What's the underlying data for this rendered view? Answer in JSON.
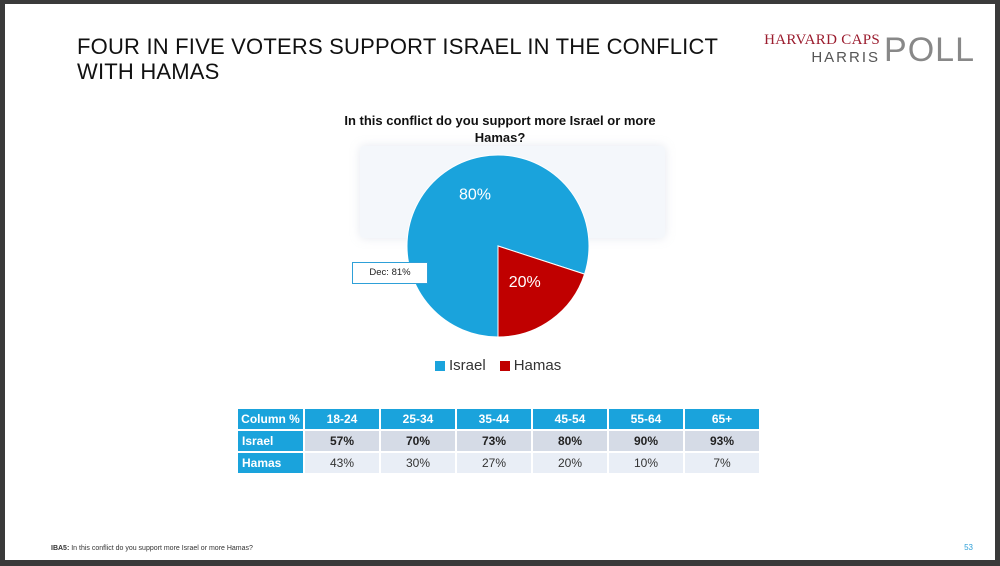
{
  "slide": {
    "title": "FOUR IN FIVE VOTERS SUPPORT ISRAEL IN THE CONFLICT WITH HAMAS",
    "logo": {
      "line1": "HARVARD CAPS",
      "line2": "HARRIS",
      "mark": "POLL"
    },
    "footnote_code": "IBA5:",
    "footnote_text": "In this conflict do you support more Israel or more Hamas?",
    "page_number": "53"
  },
  "chart_data": {
    "type": "pie",
    "title": "In this conflict do you support more Israel or more Hamas?",
    "slices": [
      {
        "name": "Israel",
        "value": 80,
        "label": "80%",
        "color": "#1aa3dc"
      },
      {
        "name": "Hamas",
        "value": 20,
        "label": "20%",
        "color": "#c00000"
      }
    ],
    "callout": "Dec: 81%",
    "legend_position": "bottom"
  },
  "table": {
    "corner": "Column %",
    "columns": [
      "18-24",
      "25-34",
      "35-44",
      "45-54",
      "55-64",
      "65+"
    ],
    "rows": [
      {
        "label": "Israel",
        "values": [
          "57%",
          "70%",
          "73%",
          "80%",
          "90%",
          "93%"
        ]
      },
      {
        "label": "Hamas",
        "values": [
          "43%",
          "30%",
          "27%",
          "20%",
          "10%",
          "7%"
        ]
      }
    ]
  }
}
